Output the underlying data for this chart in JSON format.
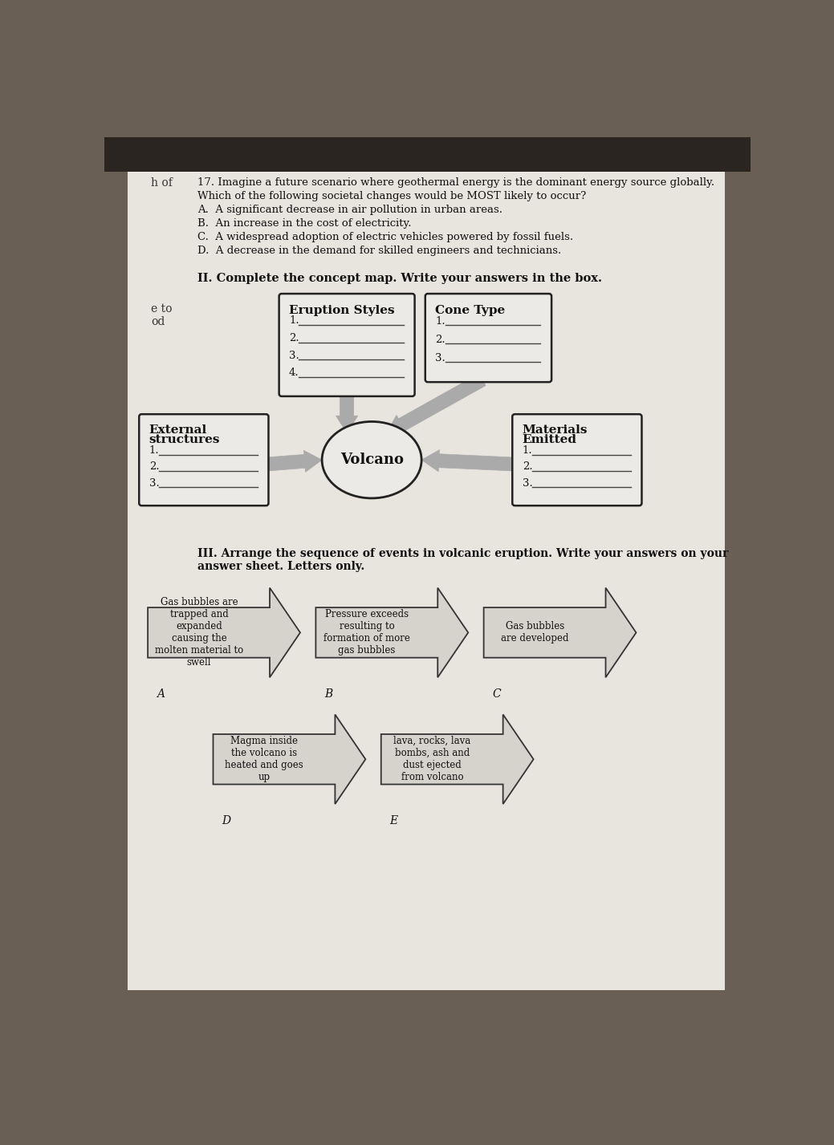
{
  "bg_color": "#6a5f55",
  "paper_color": "#e8e4de",
  "title_q17": "17. Imagine a future scenario where geothermal energy is the dominant energy source globally.",
  "q17_line2": "Which of the following societal changes would be MOST likely to occur?",
  "q17_a": "A.  A significant decrease in air pollution in urban areas.",
  "q17_b": "B.  An increase in the cost of electricity.",
  "q17_c": "C.  A widespread adoption of electric vehicles powered by fossil fuels.",
  "q17_d": "D.  A decrease in the demand for skilled engineers and technicians.",
  "section2_title": "II. Complete the concept map. Write your answers in the box.",
  "box_eruption_title": "Eruption Styles",
  "box_eruption_items": [
    "1.",
    "2.",
    "3.",
    "4."
  ],
  "box_cone_title": "Cone Type",
  "box_cone_items": [
    "1.",
    "2.",
    "3."
  ],
  "box_external_title": "External\nstructures",
  "box_external_items": [
    "1.",
    "2.",
    "3."
  ],
  "box_materials_title": "Materials\nEmitted",
  "box_materials_items": [
    "1.",
    "2.",
    "3."
  ],
  "volcano_label": "Volcano",
  "section3_title": "III. Arrange the sequence of events in volcanic eruption. Write your answers on your",
  "section3_line2": "answer sheet. Letters only.",
  "arrow_A_text": "Gas bubbles are\ntrapped and\nexpanded\ncausing the\nmolten material to\nswell",
  "arrow_A_label": "A",
  "arrow_B_text": "Pressure exceeds\nresulting to\nformation of more\ngas bubbles",
  "arrow_B_label": "B",
  "arrow_C_text": "Gas bubbles\nare developed",
  "arrow_C_label": "C",
  "arrow_D_text": "Magma inside\nthe volcano is\nheated and goes\nup",
  "arrow_D_label": "D",
  "arrow_E_text": "lava, rocks, lava\nbombs, ash and\ndust ejected\nfrom volcano",
  "arrow_E_label": "E",
  "left_margin_text1": "h of",
  "left_margin_text2": "e to",
  "left_margin_text3": "od"
}
